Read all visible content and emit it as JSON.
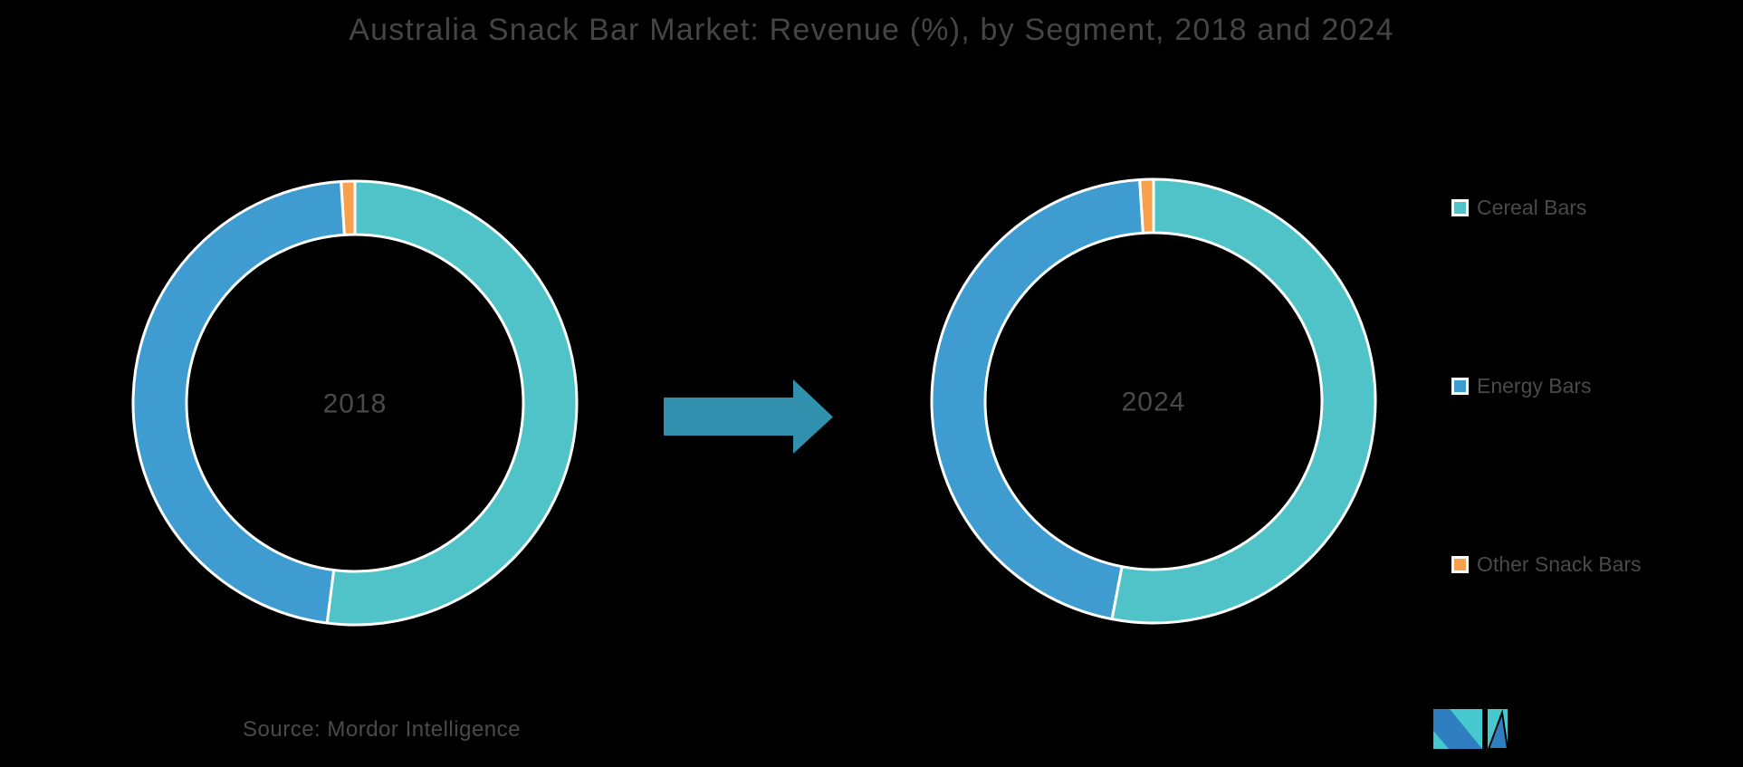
{
  "page": {
    "background": "#000000"
  },
  "header": {
    "title": "Australia Snack Bar Market: Revenue (%), by Segment, 2018 and 2024",
    "color": "#454545"
  },
  "chart_data": {
    "type": "donut",
    "title": "Australia Snack Bar Market: Revenue (%), by Segment, 2018 and 2024",
    "units": "%",
    "categories": [
      "Cereal Bars",
      "Energy Bars",
      "Other Snack Bars"
    ],
    "colors": [
      "#4FC3C8",
      "#3F9CD0",
      "#F8A04B"
    ],
    "slice_border_color": "#FFFFFF",
    "label_color": "#4A4A4A",
    "start_angle_deg": 0,
    "clockwise": true,
    "inner_radius_ratio": 0.76,
    "legend_position": "right",
    "donuts": [
      {
        "center_label": "2018",
        "values": [
          52,
          47,
          1
        ]
      },
      {
        "center_label": "2024",
        "values": [
          53,
          46,
          1
        ]
      }
    ]
  },
  "legend": {
    "text_color": "#4A4A4A",
    "items": [
      {
        "label": "Cereal Bars",
        "color": "#4FC3C8"
      },
      {
        "label": "Energy Bars",
        "color": "#3F9CD0"
      },
      {
        "label": "Other Snack Bars",
        "color": "#F8A04B"
      }
    ]
  },
  "arrow": {
    "color": "#3090AE"
  },
  "footer": {
    "source": "Source: Mordor Intelligence",
    "color": "#4A4A4A"
  },
  "logo": {
    "blue": "#2E7EC0",
    "teal": "#45C8CE"
  }
}
